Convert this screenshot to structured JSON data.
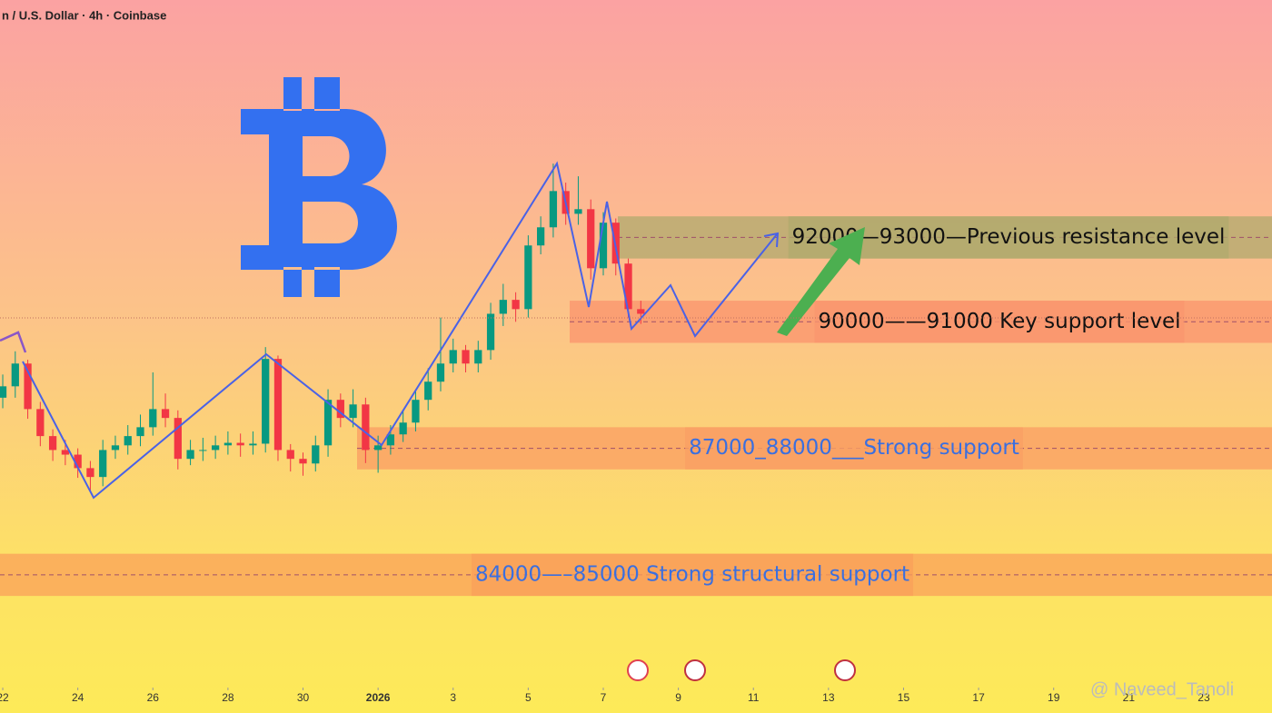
{
  "chart_data": {
    "type": "candlestick",
    "header": "n / U.S. Dollar · 4h · Coinbase",
    "watermark": "@ Naveed_Tanoli",
    "xlim": [
      -0.22,
      101.45
    ],
    "ylim": [
      81870,
      98130
    ],
    "xticks": [
      {
        "value": 0,
        "label": "22"
      },
      {
        "value": 6,
        "label": "24"
      },
      {
        "value": 12,
        "label": "26"
      },
      {
        "value": 18,
        "label": "28"
      },
      {
        "value": 24,
        "label": "30"
      },
      {
        "value": 30,
        "label": "2026"
      },
      {
        "value": 36,
        "label": "3"
      },
      {
        "value": 42,
        "label": "5"
      },
      {
        "value": 48,
        "label": "7"
      },
      {
        "value": 54,
        "label": "9"
      },
      {
        "value": 60,
        "label": "11"
      },
      {
        "value": 66,
        "label": "13"
      },
      {
        "value": 72,
        "label": "15"
      },
      {
        "value": 78,
        "label": "17"
      },
      {
        "value": 84,
        "label": "19"
      },
      {
        "value": 90,
        "label": "21"
      },
      {
        "value": 96,
        "label": "23"
      }
    ],
    "up_color": "#089981",
    "down_color": "#f23645",
    "open": [
      88700,
      88970,
      89510,
      88430,
      87790,
      87460,
      87350,
      87030,
      86820,
      87460,
      87570,
      87790,
      88000,
      88430,
      88220,
      87250,
      87460,
      87460,
      87570,
      87630,
      87570,
      87610,
      89620,
      87460,
      87250,
      87140,
      87570,
      88650,
      88220,
      88540,
      87460,
      87570,
      87830,
      88110,
      88650,
      89080,
      89510,
      89830,
      89510,
      89830,
      90690,
      91020,
      90800,
      92310,
      92740,
      93600,
      93060,
      93170,
      91770,
      92850,
      91880,
      90800
    ],
    "high": [
      89250,
      89800,
      89600,
      88600,
      87950,
      87700,
      87500,
      87200,
      87700,
      87800,
      88050,
      88300,
      89300,
      88800,
      88400,
      87700,
      87750,
      87800,
      87900,
      87850,
      87900,
      89900,
      89700,
      87600,
      87400,
      87800,
      88900,
      88800,
      88900,
      88700,
      87800,
      88050,
      88400,
      88900,
      89400,
      90600,
      90100,
      89950,
      90050,
      90950,
      91400,
      91200,
      92550,
      93000,
      94250,
      93800,
      93950,
      93400,
      93100,
      92950,
      92000,
      91000
    ],
    "low": [
      88450,
      88700,
      88200,
      87550,
      87200,
      87100,
      86800,
      86500,
      86600,
      87250,
      87350,
      87550,
      87800,
      88000,
      87000,
      87100,
      87200,
      87250,
      87350,
      87300,
      87350,
      87400,
      87200,
      86950,
      86850,
      86950,
      87300,
      88000,
      88000,
      87150,
      86920,
      87350,
      87650,
      87900,
      88400,
      88850,
      89300,
      89300,
      89300,
      89600,
      90400,
      90500,
      90600,
      92100,
      92500,
      92800,
      92800,
      91500,
      91600,
      91600,
      90600,
      90450
    ],
    "close": [
      88970,
      89510,
      88430,
      87790,
      87460,
      87350,
      87030,
      86820,
      87460,
      87570,
      87790,
      88000,
      88430,
      88220,
      87250,
      87460,
      87460,
      87570,
      87630,
      87570,
      87610,
      89620,
      87460,
      87250,
      87140,
      87570,
      88650,
      88220,
      88540,
      87460,
      87570,
      87830,
      88110,
      88650,
      89080,
      89510,
      89830,
      89510,
      89830,
      90690,
      91020,
      90800,
      92310,
      92740,
      93600,
      93060,
      93170,
      91770,
      92850,
      91880,
      90800,
      90690
    ],
    "zones": [
      {
        "low": 92000,
        "high": 93000,
        "label": "92000—93000—Previous resistance level",
        "color": "rgba(176,170,110,0.75)",
        "label_color": "#111111"
      },
      {
        "low": 90000,
        "high": 91000,
        "label": "90000——91000 Key support level",
        "color": "rgba(250,150,110,0.8)",
        "label_color": "#111111"
      },
      {
        "low": 87000,
        "high": 88000,
        "label": "87000_88000___Strong support",
        "color": "rgba(250,160,100,0.8)",
        "label_color": "#3a6fe0"
      },
      {
        "low": 84000,
        "high": 85000,
        "label": "84000—–85000  Strong structural support",
        "color": "rgba(250,160,90,0.75)",
        "label_color": "#3a6fe0"
      }
    ]
  }
}
